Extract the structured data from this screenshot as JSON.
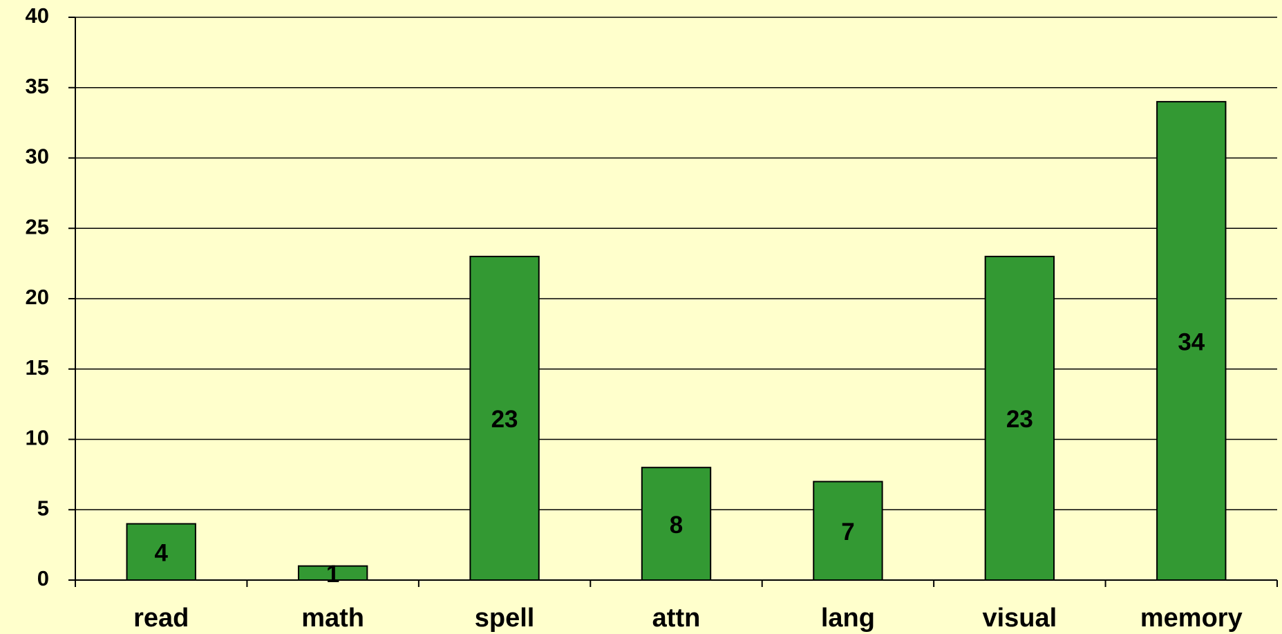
{
  "chart_data": {
    "type": "bar",
    "categories": [
      "read",
      "math",
      "spell",
      "attn",
      "lang",
      "visual",
      "memory"
    ],
    "values": [
      4,
      1,
      23,
      8,
      7,
      23,
      34
    ],
    "color": "#339933",
    "ylim": [
      0,
      40
    ],
    "yticks": [
      0,
      5,
      10,
      15,
      20,
      25,
      30,
      35,
      40
    ],
    "grid": true
  }
}
